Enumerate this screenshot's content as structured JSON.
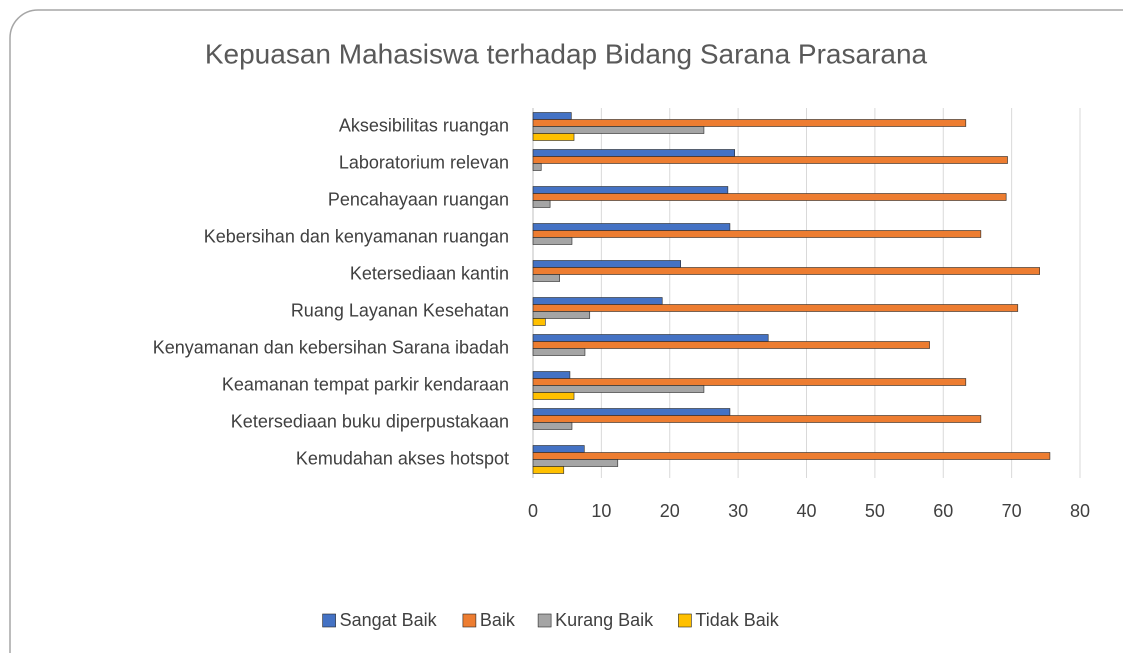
{
  "chart_data": {
    "type": "bar",
    "orientation": "horizontal",
    "title": "Kepuasan Mahasiswa terhadap Bidang Sarana Prasarana",
    "categories": [
      "Aksesibilitas ruangan",
      "Laboratorium relevan",
      "Pencahayaan ruangan",
      "Kebersihan dan kenyamanan ruangan",
      "Ketersediaan kantin",
      "Ruang Layanan Kesehatan",
      "Kenyamanan dan kebersihan Sarana ibadah",
      "Keamanan tempat parkir kendaraan",
      "Ketersediaan buku diperpustakaan",
      "Kemudahan akses hotspot"
    ],
    "series": [
      {
        "name": "Sangat Baik",
        "color": "#4472c4",
        "values": [
          5.6,
          29.5,
          28.5,
          28.8,
          21.6,
          18.9,
          34.4,
          5.4,
          28.8,
          7.5
        ]
      },
      {
        "name": "Baik",
        "color": "#ed7d31",
        "values": [
          63.3,
          69.4,
          69.2,
          65.5,
          74.1,
          70.9,
          58,
          63.3,
          65.5,
          75.6
        ]
      },
      {
        "name": "Kurang Baik",
        "color": "#a5a5a5",
        "values": [
          25,
          1.2,
          2.5,
          5.7,
          3.9,
          8.3,
          7.6,
          25,
          5.7,
          12.4
        ]
      },
      {
        "name": "Tidak Baik",
        "color": "#ffc000",
        "values": [
          6,
          0,
          0,
          0,
          0,
          1.8,
          0,
          6,
          0,
          4.5
        ]
      }
    ],
    "xlim": [
      0,
      80
    ],
    "xticks": [
      0,
      10,
      20,
      30,
      40,
      50,
      60,
      70,
      80
    ],
    "grid": true,
    "legend": "bottom"
  }
}
